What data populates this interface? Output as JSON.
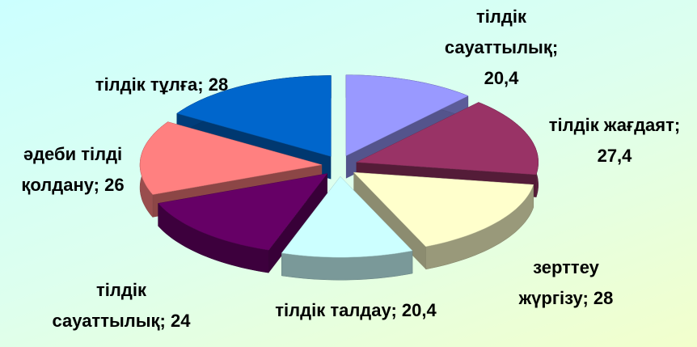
{
  "chart_data": {
    "type": "pie3d",
    "categories": [
      "тілдік сауаттылық;",
      "тілдік жағдаят;",
      "зерттеу жүргізу;",
      "тілдік талдау;",
      "тілдік сауаттылық;",
      "әдеби тілді қолдану;",
      "тілдік тұлға;"
    ],
    "values": [
      20.4,
      27.4,
      28,
      20.4,
      24,
      26,
      28
    ],
    "value_labels": [
      "20,4",
      "27,4",
      "28",
      "20,4",
      "24",
      "26",
      "28"
    ],
    "colors": [
      "#9999ff",
      "#993366",
      "#ffffcc",
      "#ccffff",
      "#660066",
      "#ff8080",
      "#0066cc"
    ]
  }
}
